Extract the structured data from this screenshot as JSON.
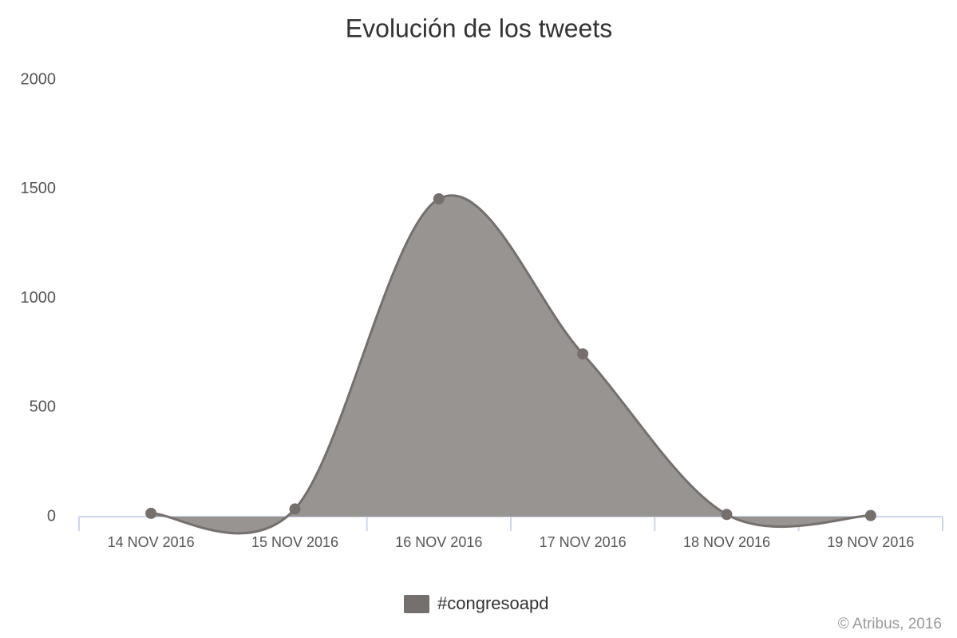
{
  "chart_data": {
    "type": "area",
    "smooth": true,
    "title": "Evolución de los tweets",
    "categories": [
      "14 NOV 2016",
      "15 NOV 2016",
      "16 NOV 2016",
      "17 NOV 2016",
      "18 NOV 2016",
      "19 NOV 2016"
    ],
    "series": [
      {
        "name": "#congresoapd",
        "color": "#75706d",
        "fill": "#989491",
        "values": [
          15,
          35,
          1455,
          745,
          10,
          5
        ]
      }
    ],
    "ylim": [
      0,
      2000
    ],
    "yticks": [
      0,
      500,
      1000,
      1500,
      2000
    ],
    "grid": false,
    "legend": "bottom",
    "credits": "© Atribus, 2016"
  }
}
